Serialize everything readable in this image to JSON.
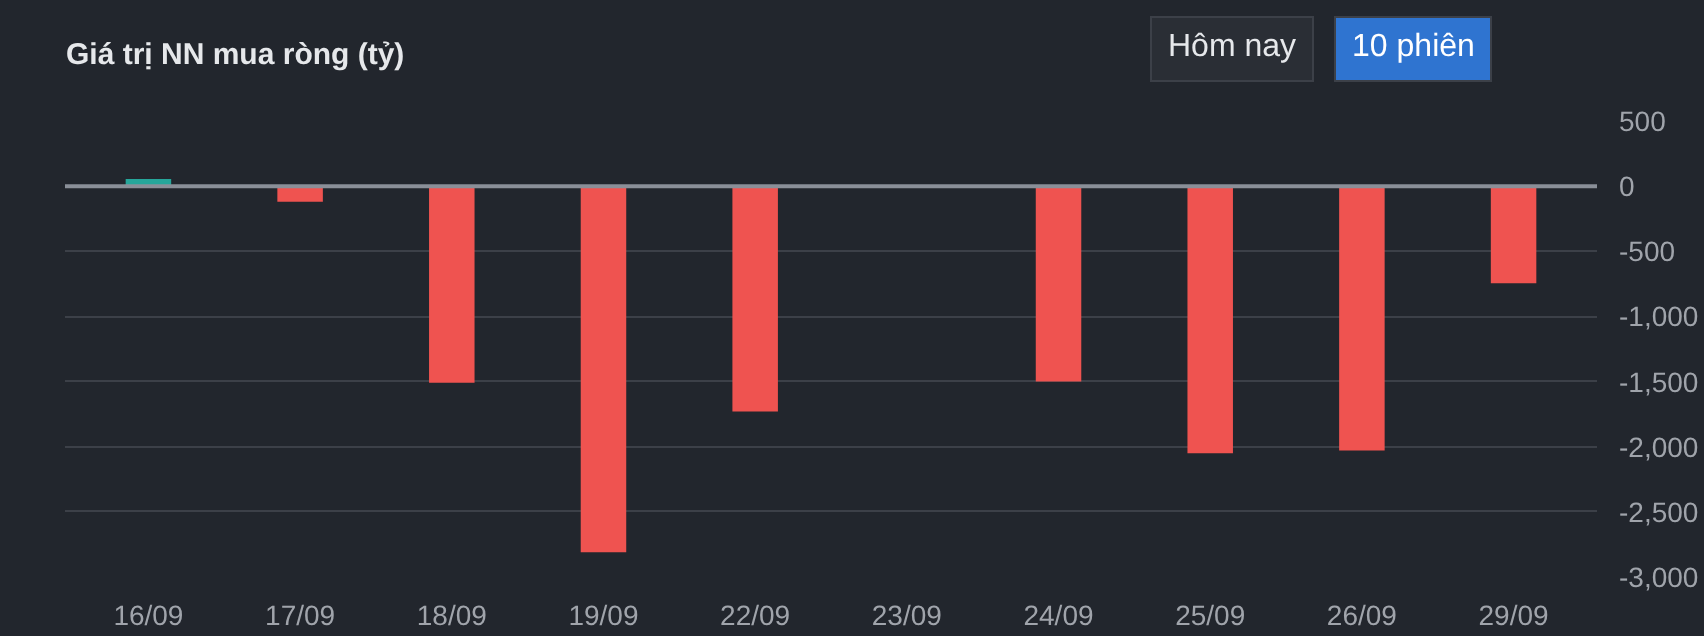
{
  "chart_data": {
    "type": "bar",
    "title": "Giá trị NN mua ròng (tỷ)",
    "categories": [
      "16/09",
      "17/09",
      "18/09",
      "19/09",
      "22/09",
      "23/09",
      "24/09",
      "25/09",
      "26/09",
      "29/09"
    ],
    "values": [
      55,
      -120,
      -1510,
      -2810,
      -1730,
      -10,
      -1500,
      -2050,
      -2030,
      -745
    ],
    "colors": [
      "#26a69a",
      "#ef5350",
      "#ef5350",
      "#ef5350",
      "#ef5350",
      "#ef5350",
      "#ef5350",
      "#ef5350",
      "#ef5350",
      "#ef5350"
    ],
    "ylim": [
      -3000,
      500
    ],
    "yticks": [
      500,
      0,
      {
        "value": -500,
        "label": "-500"
      },
      {
        "value": -1000,
        "label": "-1,000"
      },
      {
        "value": -1500,
        "label": "-1,500"
      },
      {
        "value": -2000,
        "label": "-2,000"
      },
      {
        "value": -2500,
        "label": "-2,500"
      },
      {
        "value": -3000,
        "label": "-3,000"
      }
    ],
    "grid": "y",
    "ref_lines": [
      {
        "axis": "y",
        "value": 0,
        "label": null,
        "color": "#8a8f98"
      }
    ],
    "annotations": [
      "Hôm nay",
      "10 phiên"
    ]
  }
}
